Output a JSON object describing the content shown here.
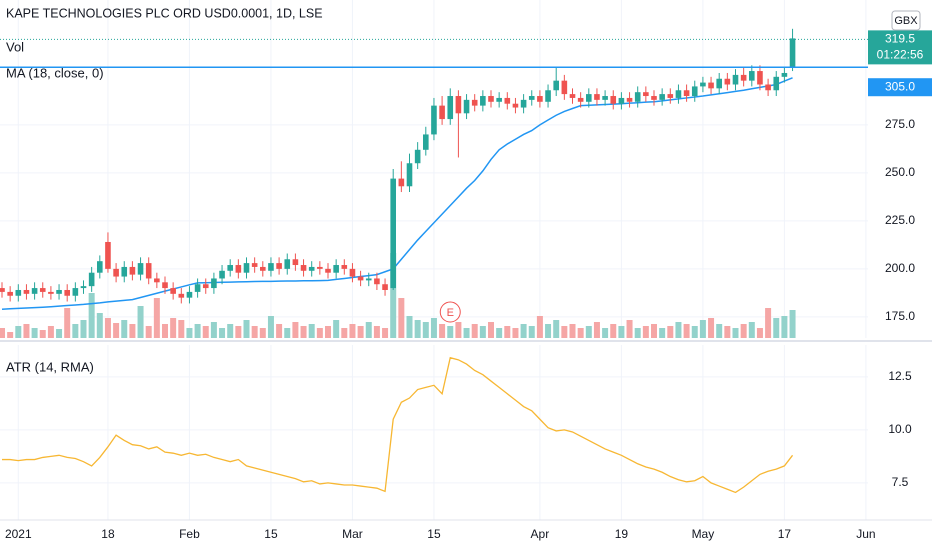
{
  "chart_data": [
    {
      "type": "candlestick",
      "title": "KAPE TECHNOLOGIES PLC ORD USD0.0001, 1D, LSE",
      "currency": "GBX",
      "categories": [
        null,
        null,
        "2021",
        null,
        null,
        null,
        null,
        null,
        null,
        null,
        null,
        null,
        null,
        "18",
        null,
        null,
        null,
        null,
        null,
        null,
        null,
        null,
        null,
        "Feb",
        null,
        null,
        null,
        null,
        null,
        null,
        null,
        null,
        null,
        "15",
        null,
        null,
        null,
        null,
        null,
        null,
        null,
        null,
        null,
        "Mar",
        null,
        null,
        null,
        null,
        null,
        null,
        null,
        null,
        null,
        "15",
        null,
        null,
        null,
        null,
        null,
        null,
        null,
        null,
        null,
        null,
        null,
        null,
        "Apr",
        null,
        null,
        null,
        null,
        null,
        null,
        null,
        null,
        null,
        "19",
        null,
        null,
        null,
        null,
        null,
        null,
        null,
        null,
        null,
        "May",
        null,
        null,
        null,
        null,
        null,
        null,
        null,
        null,
        null,
        "17",
        null,
        null,
        null,
        null,
        null,
        null,
        null,
        null,
        null,
        "Jun"
      ],
      "open": [
        190,
        188,
        186,
        189,
        187,
        190,
        188,
        187,
        189,
        186,
        190,
        191,
        198,
        214,
        200,
        196,
        201,
        197,
        203,
        195,
        193,
        190,
        187,
        185,
        188,
        192,
        190,
        195,
        199,
        202,
        198,
        203,
        201,
        199,
        203,
        200,
        205,
        202,
        199,
        201,
        200,
        198,
        202,
        200,
        196,
        194,
        195,
        192,
        190,
        247,
        243,
        255,
        262,
        270,
        285,
        278,
        290,
        281,
        288,
        285,
        290,
        287,
        289,
        286,
        284,
        288,
        290,
        287,
        293,
        298,
        291,
        289,
        287,
        291,
        288,
        290,
        286,
        289,
        287,
        292,
        290,
        288,
        291,
        289,
        293,
        290,
        295,
        297,
        294,
        299,
        296,
        301,
        298,
        303,
        296,
        293,
        300,
        305,
        null,
        null,
        null,
        null,
        null,
        null,
        null,
        null,
        null
      ],
      "high": [
        193,
        191,
        192,
        192,
        193,
        193,
        191,
        192,
        192,
        193,
        194,
        201,
        207,
        219,
        203,
        204,
        204,
        206,
        206,
        198,
        196,
        193,
        190,
        191,
        195,
        195,
        198,
        202,
        205,
        205,
        206,
        206,
        204,
        206,
        206,
        208,
        208,
        205,
        204,
        204,
        203,
        205,
        205,
        203,
        199,
        198,
        198,
        195,
        252,
        256,
        260,
        266,
        274,
        289,
        290,
        294,
        293,
        291,
        291,
        293,
        293,
        292,
        292,
        289,
        291,
        293,
        293,
        296,
        305,
        301,
        294,
        292,
        294,
        294,
        293,
        293,
        292,
        292,
        295,
        295,
        293,
        294,
        294,
        296,
        296,
        298,
        300,
        300,
        302,
        302,
        304,
        305,
        306,
        306,
        299,
        303,
        305,
        325,
        null,
        null,
        null,
        null,
        null,
        null,
        null,
        null,
        null
      ],
      "low": [
        185,
        183,
        183,
        184,
        184,
        185,
        184,
        184,
        183,
        183,
        187,
        188,
        195,
        198,
        193,
        193,
        194,
        194,
        192,
        190,
        187,
        184,
        182,
        182,
        185,
        187,
        187,
        192,
        196,
        195,
        195,
        198,
        196,
        196,
        197,
        197,
        199,
        196,
        196,
        197,
        195,
        195,
        197,
        193,
        191,
        191,
        189,
        186,
        189,
        240,
        240,
        252,
        259,
        267,
        275,
        275,
        258,
        278,
        282,
        282,
        284,
        284,
        283,
        281,
        281,
        285,
        284,
        284,
        290,
        288,
        286,
        284,
        284,
        285,
        285,
        283,
        283,
        284,
        284,
        287,
        285,
        285,
        286,
        286,
        287,
        287,
        292,
        291,
        291,
        293,
        293,
        295,
        295,
        293,
        290,
        290,
        297,
        303,
        null,
        null,
        null,
        null,
        null,
        null,
        null,
        null,
        null
      ],
      "close": [
        188,
        186,
        189,
        187,
        190,
        188,
        187,
        189,
        186,
        190,
        191,
        198,
        204,
        200,
        196,
        201,
        197,
        203,
        195,
        193,
        190,
        187,
        185,
        188,
        192,
        190,
        195,
        199,
        202,
        198,
        203,
        201,
        199,
        203,
        200,
        205,
        202,
        199,
        201,
        200,
        198,
        202,
        200,
        196,
        194,
        195,
        192,
        189,
        247,
        243,
        255,
        262,
        270,
        285,
        278,
        290,
        281,
        288,
        285,
        290,
        287,
        289,
        286,
        284,
        288,
        290,
        287,
        293,
        298,
        291,
        289,
        287,
        291,
        288,
        290,
        286,
        289,
        287,
        292,
        290,
        288,
        291,
        289,
        293,
        290,
        295,
        297,
        294,
        299,
        296,
        301,
        298,
        303,
        296,
        293,
        300,
        302,
        320,
        null,
        null,
        null,
        null,
        null,
        null,
        null,
        null,
        null
      ],
      "up_color": "#26a69a",
      "down_color": "#ef5350",
      "volume": {
        "name": "Vol",
        "up_color": "#93d2cb",
        "down_color": "#f5a6a5",
        "values": [
          10,
          6,
          12,
          14,
          10,
          8,
          12,
          9,
          30,
          14,
          18,
          45,
          25,
          20,
          15,
          18,
          14,
          32,
          12,
          40,
          14,
          20,
          18,
          10,
          14,
          12,
          16,
          10,
          14,
          12,
          18,
          12,
          10,
          22,
          14,
          10,
          16,
          12,
          14,
          10,
          12,
          18,
          10,
          14,
          12,
          16,
          12,
          10,
          85,
          40,
          22,
          18,
          16,
          20,
          14,
          12,
          16,
          10,
          14,
          12,
          16,
          10,
          12,
          10,
          14,
          12,
          22,
          14,
          18,
          12,
          14,
          10,
          12,
          16,
          10,
          14,
          12,
          18,
          10,
          12,
          14,
          10,
          12,
          16,
          14,
          12,
          18,
          20,
          14,
          12,
          10,
          14,
          16,
          10,
          30,
          20,
          22,
          28,
          null,
          null,
          null,
          null,
          null,
          null,
          null,
          null,
          null
        ]
      },
      "ma": {
        "name": "MA (18, close, 0)",
        "color": "#2196f3",
        "values": [
          179.0,
          179.2,
          179.4,
          179.6,
          179.8,
          180.0,
          180.3,
          180.6,
          180.9,
          181.2,
          181.5,
          181.9,
          182.3,
          182.8,
          183.2,
          183.6,
          184.0,
          185.1,
          186.2,
          187.3,
          188.4,
          189.5,
          190.6,
          191.7,
          192.7,
          192.8,
          192.9,
          193.0,
          193.1,
          193.2,
          193.3,
          193.4,
          193.5,
          193.5,
          193.6,
          193.7,
          193.7,
          193.8,
          193.8,
          193.9,
          194.0,
          194.5,
          195.0,
          195.5,
          196.0,
          196.5,
          197.0,
          198.5,
          200.0,
          205,
          210,
          215,
          219.5,
          224,
          228.5,
          233,
          237.5,
          242,
          246,
          251,
          257,
          262,
          265,
          267.5,
          270,
          272,
          275,
          277.5,
          280,
          282,
          283.5,
          285,
          285.2,
          285.4,
          285.6,
          285.8,
          286.0,
          286.3,
          286.5,
          286.8,
          287.0,
          287.5,
          288,
          288.5,
          289,
          289.5,
          290,
          290.6,
          291.2,
          291.8,
          292.4,
          293,
          293.8,
          294.5,
          295.2,
          296,
          297.8,
          299.5,
          null,
          null,
          null,
          null,
          null,
          null,
          null,
          null,
          null
        ]
      },
      "ylim": [
        164,
        340
      ],
      "yticks": [
        {
          "value": 175,
          "label": "175.0"
        },
        {
          "value": 200,
          "label": "200.0"
        },
        {
          "value": 225,
          "label": "225.0"
        },
        {
          "value": 250,
          "label": "250.0"
        },
        {
          "value": 275,
          "label": "275.0"
        }
      ],
      "grid": true,
      "last_price": {
        "value": 319.5,
        "label": "319.5"
      },
      "countdown": "01:22:56",
      "hline": {
        "value": 305,
        "label": "305.0",
        "color": "#2196f3"
      },
      "events": [
        {
          "index": 55,
          "label": "E"
        }
      ]
    },
    {
      "type": "line",
      "series": [
        {
          "name": "ATR (14, RMA)",
          "color": "#f7b733",
          "values": [
            8.6,
            8.6,
            8.55,
            8.6,
            8.6,
            8.7,
            8.75,
            8.8,
            8.7,
            8.65,
            8.5,
            8.3,
            8.7,
            9.2,
            9.75,
            9.5,
            9.3,
            9.25,
            9.1,
            9.2,
            8.95,
            8.9,
            8.8,
            8.9,
            8.8,
            8.85,
            8.7,
            8.6,
            8.5,
            8.6,
            8.3,
            8.2,
            8.1,
            8.0,
            7.9,
            7.8,
            7.7,
            7.55,
            7.6,
            7.45,
            7.5,
            7.45,
            7.4,
            7.4,
            7.35,
            7.3,
            7.25,
            7.1,
            10.5,
            11.3,
            11.5,
            11.9,
            12.0,
            12.1,
            11.7,
            13.4,
            13.3,
            13.1,
            12.8,
            12.6,
            12.3,
            12.0,
            11.7,
            11.4,
            11.1,
            10.9,
            10.5,
            10.1,
            9.95,
            10.0,
            9.9,
            9.7,
            9.5,
            9.3,
            9.1,
            8.95,
            8.8,
            8.6,
            8.4,
            8.25,
            8.15,
            8.0,
            7.8,
            7.65,
            7.55,
            7.6,
            7.8,
            7.5,
            7.35,
            7.2,
            7.05,
            7.3,
            7.6,
            7.9,
            8.05,
            8.15,
            8.3,
            8.8,
            null,
            null,
            null,
            null,
            null,
            null,
            null,
            null,
            null
          ]
        }
      ],
      "ylim": [
        5.75,
        14.0
      ],
      "yticks": [
        7.5,
        {
          "value": 10,
          "label": "10.0"
        },
        12.5
      ],
      "grid": true
    }
  ]
}
